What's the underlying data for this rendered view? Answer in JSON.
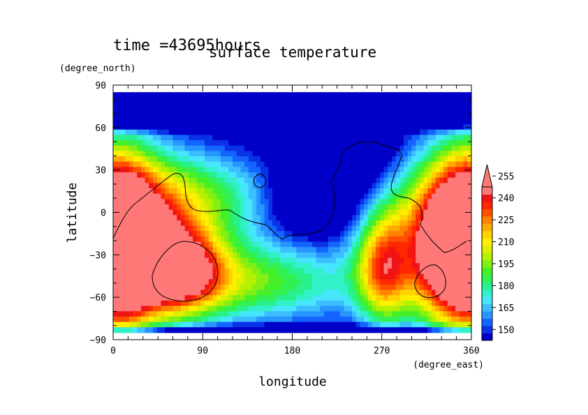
{
  "chart_data": {
    "type": "heatmap",
    "title": "surface temperature",
    "time_label": "time =43695hours",
    "xlabel": "longitude",
    "xunit": "(degree_east)",
    "ylabel": "latitude",
    "yunit": "(degree_north)",
    "xlim": [
      0,
      360
    ],
    "ylim": [
      -90,
      90
    ],
    "data_lat_range": [
      -85,
      85
    ],
    "x_ticks": [
      0,
      90,
      180,
      270,
      360
    ],
    "y_ticks": [
      -90,
      -60,
      -30,
      0,
      30,
      60,
      90
    ],
    "x_tick_labels": [
      "0",
      "90",
      "180",
      "270",
      "360"
    ],
    "y_tick_labels": [
      "−90",
      "−60",
      "−30",
      "0",
      "30",
      "60",
      "90"
    ],
    "colorbar": {
      "levels": [
        145,
        150,
        155,
        160,
        165,
        170,
        175,
        180,
        185,
        190,
        195,
        200,
        205,
        210,
        215,
        220,
        225,
        230,
        235,
        240,
        245,
        250,
        255,
        260
      ],
      "labels": [
        "150",
        "165",
        "180",
        "195",
        "210",
        "225",
        "240",
        "255"
      ],
      "label_values": [
        150,
        165,
        180,
        195,
        210,
        225,
        240,
        255
      ],
      "colors": [
        "#0000c8",
        "#0a32e6",
        "#1464ff",
        "#2896ff",
        "#3cbeff",
        "#46e6ff",
        "#32f0c8",
        "#28f08c",
        "#32f050",
        "#46f028",
        "#82f014",
        "#b4f000",
        "#dcf000",
        "#fff000",
        "#ffd200",
        "#ffaa00",
        "#ff8200",
        "#ff5000",
        "#ff2800",
        "#f01414",
        "#ff7878"
      ],
      "extend": "max"
    },
    "field_description_omitted": "",
    "coastline_note": ""
  }
}
